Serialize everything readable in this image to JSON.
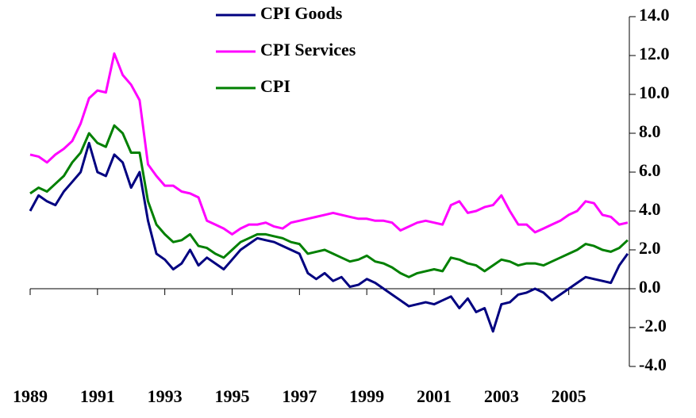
{
  "chart_data": {
    "type": "line",
    "x": [
      1989.0,
      1989.25,
      1989.5,
      1989.75,
      1990.0,
      1990.25,
      1990.5,
      1990.75,
      1991.0,
      1991.25,
      1991.5,
      1991.75,
      1992.0,
      1992.25,
      1992.5,
      1992.75,
      1993.0,
      1993.25,
      1993.5,
      1993.75,
      1994.0,
      1994.25,
      1994.5,
      1994.75,
      1995.0,
      1995.25,
      1995.5,
      1995.75,
      1996.0,
      1996.25,
      1996.5,
      1996.75,
      1997.0,
      1997.25,
      1997.5,
      1997.75,
      1998.0,
      1998.25,
      1998.5,
      1998.75,
      1999.0,
      1999.25,
      1999.5,
      1999.75,
      2000.0,
      2000.25,
      2000.5,
      2000.75,
      2001.0,
      2001.25,
      2001.5,
      2001.75,
      2002.0,
      2002.25,
      2002.5,
      2002.75,
      2003.0,
      2003.25,
      2003.5,
      2003.75,
      2004.0,
      2004.25,
      2004.5,
      2004.75,
      2005.0,
      2005.25,
      2005.5,
      2005.75,
      2006.0,
      2006.25,
      2006.5,
      2006.75
    ],
    "series": [
      {
        "name": "CPI Goods",
        "color": "#000080",
        "values": [
          4.0,
          4.8,
          4.5,
          4.3,
          5.0,
          5.5,
          6.0,
          7.5,
          6.0,
          5.8,
          6.9,
          6.5,
          5.2,
          6.0,
          3.5,
          1.8,
          1.5,
          1.0,
          1.3,
          2.0,
          1.2,
          1.6,
          1.3,
          1.0,
          1.5,
          2.0,
          2.3,
          2.6,
          2.5,
          2.4,
          2.2,
          2.0,
          1.8,
          0.8,
          0.5,
          0.8,
          0.4,
          0.6,
          0.1,
          0.2,
          0.5,
          0.3,
          0.0,
          -0.3,
          -0.6,
          -0.9,
          -0.8,
          -0.7,
          -0.8,
          -0.6,
          -0.4,
          -1.0,
          -0.5,
          -1.2,
          -1.0,
          -2.2,
          -0.8,
          -0.7,
          -0.3,
          -0.2,
          0.0,
          -0.2,
          -0.6,
          -0.3,
          0.0,
          0.3,
          0.6,
          0.5,
          0.4,
          0.3,
          1.2,
          1.8
        ]
      },
      {
        "name": "CPI Services",
        "color": "#ff00ff",
        "values": [
          6.9,
          6.8,
          6.5,
          6.9,
          7.2,
          7.6,
          8.5,
          9.8,
          10.2,
          10.1,
          12.1,
          11.0,
          10.5,
          9.7,
          6.4,
          5.8,
          5.3,
          5.3,
          5.0,
          4.9,
          4.7,
          3.5,
          3.3,
          3.1,
          2.8,
          3.1,
          3.3,
          3.3,
          3.4,
          3.2,
          3.1,
          3.4,
          3.5,
          3.6,
          3.7,
          3.8,
          3.9,
          3.8,
          3.7,
          3.6,
          3.6,
          3.5,
          3.5,
          3.4,
          3.0,
          3.2,
          3.4,
          3.5,
          3.4,
          3.3,
          4.3,
          4.5,
          3.9,
          4.0,
          4.2,
          4.3,
          4.8,
          4.0,
          3.3,
          3.3,
          2.9,
          3.1,
          3.3,
          3.5,
          3.8,
          4.0,
          4.5,
          4.4,
          3.8,
          3.7,
          3.3,
          3.4
        ]
      },
      {
        "name": "CPI",
        "color": "#008000",
        "values": [
          4.9,
          5.2,
          5.0,
          5.4,
          5.8,
          6.5,
          7.0,
          8.0,
          7.5,
          7.3,
          8.4,
          8.0,
          7.0,
          7.0,
          4.5,
          3.3,
          2.8,
          2.4,
          2.5,
          2.8,
          2.2,
          2.1,
          1.8,
          1.6,
          2.0,
          2.4,
          2.6,
          2.8,
          2.8,
          2.7,
          2.6,
          2.4,
          2.3,
          1.8,
          1.9,
          2.0,
          1.8,
          1.6,
          1.4,
          1.5,
          1.7,
          1.4,
          1.3,
          1.1,
          0.8,
          0.6,
          0.8,
          0.9,
          1.0,
          0.9,
          1.6,
          1.5,
          1.3,
          1.2,
          0.9,
          1.2,
          1.5,
          1.4,
          1.2,
          1.3,
          1.3,
          1.2,
          1.4,
          1.6,
          1.8,
          2.0,
          2.3,
          2.2,
          2.0,
          1.9,
          2.1,
          2.5
        ]
      }
    ],
    "xlim": [
      1989,
      2006.8
    ],
    "xticks": [
      1989,
      1991,
      1993,
      1995,
      1997,
      1999,
      2001,
      2003,
      2005
    ],
    "ylim": [
      -4,
      14
    ],
    "yticks": [
      {
        "value": -4,
        "label": "-4.0"
      },
      {
        "value": -2,
        "label": "-2.0"
      },
      {
        "value": 0,
        "label": "0.0"
      },
      {
        "value": 2,
        "label": "2.0"
      },
      {
        "value": 4,
        "label": "4.0"
      },
      {
        "value": 6,
        "label": "6.0"
      },
      {
        "value": 8,
        "label": "8.0"
      },
      {
        "value": 10,
        "label": "10.0"
      },
      {
        "value": 12,
        "label": "12.0"
      },
      {
        "value": 14,
        "label": "14.0"
      }
    ],
    "legend": "top"
  }
}
